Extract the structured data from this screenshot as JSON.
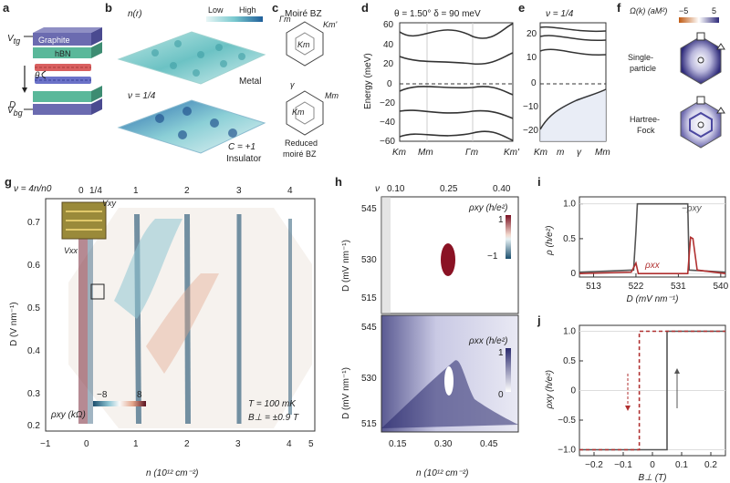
{
  "panel_labels": [
    "a",
    "b",
    "c",
    "d",
    "e",
    "f",
    "g",
    "h",
    "i",
    "j"
  ],
  "panel_a": {
    "layers": [
      "Graphite",
      "hBN"
    ],
    "v_tg": "V",
    "v_tg_sub": "tg",
    "v_bg": "V",
    "v_bg_sub": "bg",
    "theta": "θ",
    "d": "D"
  },
  "panel_b": {
    "density": "n(r)",
    "low": "Low",
    "high": "High",
    "metal": "Metal",
    "nu": "ν = 1/4",
    "chern": "C = +1",
    "insulator": "Insulator"
  },
  "panel_c": {
    "title": "Moiré BZ",
    "gamma_m": "Γm",
    "km": "Km",
    "km_prime": "Km'",
    "gamma": "γ",
    "mm": "Mm",
    "reduced": "Reduced",
    "reduced2": "moiré BZ"
  },
  "panel_d": {
    "header": "θ = 1.50°   δ = 90 meV",
    "ylabel": "Energy (meV)",
    "yticks": [
      "60",
      "40",
      "20",
      "0",
      "−20",
      "−40",
      "−60"
    ],
    "xticks": [
      "Km",
      "Mm",
      "Γm",
      "Km'"
    ]
  },
  "panel_e": {
    "header": "ν = 1/4",
    "yticks": [
      "20",
      "10",
      "0",
      "−10",
      "−20"
    ],
    "xticks": [
      "Km",
      "m",
      "γ",
      "Mm"
    ]
  },
  "panel_f": {
    "header": "Ω(k) (aM²)",
    "cmin": "−5",
    "cmax": "5",
    "single1": "Single-",
    "single2": "particle",
    "hartree1": "Hartree-",
    "hartree2": "Fock"
  },
  "panel_g": {
    "top_axis_label": "ν = 4n/n0",
    "top_ticks": [
      "0",
      "1/4",
      "1",
      "2",
      "3",
      "4"
    ],
    "ylabel": "D (V nm⁻¹)",
    "yticks": [
      "0.7",
      "0.6",
      "0.5",
      "0.4",
      "0.3",
      "0.2"
    ],
    "xlabel": "n (10¹² cm⁻²)",
    "xticks": [
      "−1",
      "0",
      "1",
      "2",
      "3",
      "4",
      "5"
    ],
    "cbar_label": "ρxy (kΩ)",
    "cmin": "−8",
    "cmax": "8",
    "temp": "T = 100 mK",
    "field": "B⊥ = ±0.9 T",
    "vxy": "Vxy",
    "vxx": "Vxx"
  },
  "panel_h": {
    "top_axis_label": "ν",
    "top_ticks": [
      "0.10",
      "0.25",
      "0.40"
    ],
    "ylabel": "D (mV nm⁻¹)",
    "yticks_top": [
      "545",
      "530",
      "515"
    ],
    "yticks_bottom": [
      "545",
      "530",
      "515"
    ],
    "rxy_label": "ρxy (h/e²)",
    "rxy_max": "1",
    "rxy_min": "−1",
    "rxx_label": "ρxx (h/e²)",
    "rxx_max": "1",
    "rxx_min": "0",
    "xlabel": "n (10¹² cm⁻²)",
    "xticks": [
      "0.15",
      "0.30",
      "0.45"
    ]
  },
  "chart_data": [
    {
      "type": "line",
      "panel": "i",
      "xlabel": "D (mV nm⁻¹)",
      "ylabel": "ρ (h/e²)",
      "xlim": [
        510,
        541
      ],
      "ylim": [
        -0.05,
        1.1
      ],
      "xticks": [
        "513",
        "522",
        "531",
        "540"
      ],
      "yticks": [
        "1.0",
        "0.5",
        "0"
      ],
      "series": [
        {
          "name": "−ρxy",
          "color": "#555555",
          "x": [
            510,
            521.5,
            522.0,
            522.3,
            533.0,
            533.3,
            541
          ],
          "values": [
            0.02,
            0.05,
            0.6,
            1.0,
            1.0,
            0.05,
            0.02
          ]
        },
        {
          "name": "ρxx",
          "color": "#b03030",
          "x": [
            510,
            521.0,
            522.0,
            522.5,
            533.0,
            533.6,
            534.1,
            535.0,
            541
          ],
          "values": [
            0.0,
            0.02,
            0.15,
            0.0,
            0.0,
            0.52,
            0.5,
            0.05,
            0.0
          ]
        }
      ]
    },
    {
      "type": "line",
      "panel": "j",
      "xlabel": "B⊥ (T)",
      "ylabel": "ρxy (h/e²)",
      "xlim": [
        -0.25,
        0.25
      ],
      "ylim": [
        -1.1,
        1.1
      ],
      "xticks": [
        "−0.2",
        "−0.1",
        "0",
        "0.1",
        "0.2"
      ],
      "yticks": [
        "1.0",
        "0.5",
        "0",
        "−0.5",
        "−1.0"
      ],
      "series": [
        {
          "color": "#555555",
          "x": [
            -0.25,
            0.05,
            0.05,
            0.25
          ],
          "values": [
            -1.0,
            -1.0,
            1.0,
            1.0
          ]
        },
        {
          "color": "#b03030",
          "dashed": true,
          "x": [
            -0.25,
            -0.045,
            -0.045,
            0.25
          ],
          "values": [
            -1.0,
            -1.0,
            1.0,
            1.0
          ]
        }
      ]
    }
  ]
}
